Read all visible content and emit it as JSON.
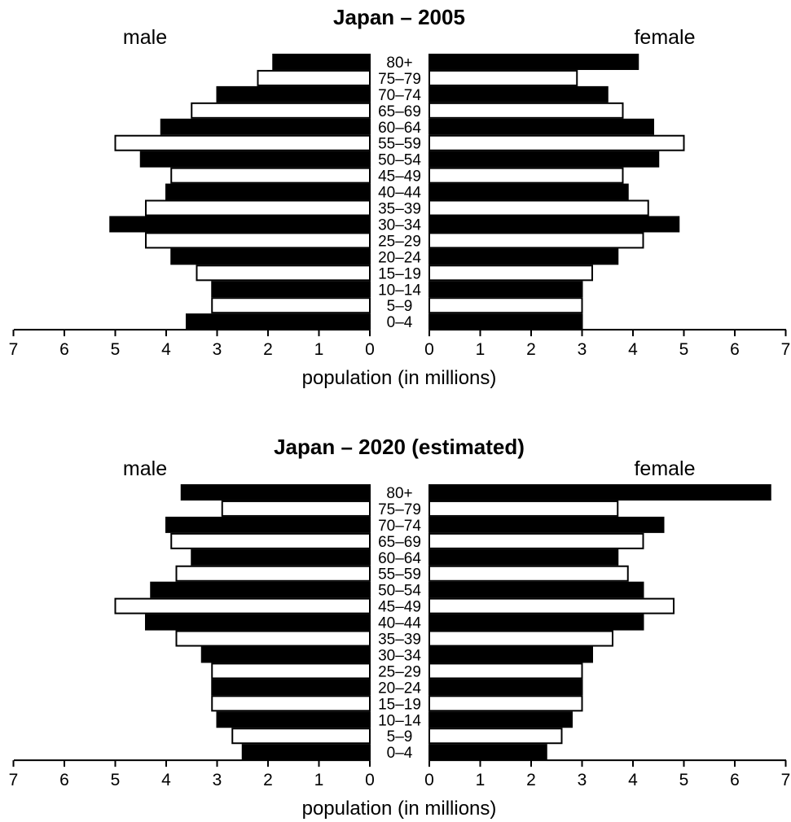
{
  "chart_data": [
    {
      "type": "bar",
      "title": "Japan – 2005",
      "left_label": "male",
      "right_label": "female",
      "xlabel": "population (in millions)",
      "xlim": [
        0,
        7
      ],
      "ticks": [
        "0",
        "1",
        "2",
        "3",
        "4",
        "5",
        "6",
        "7"
      ],
      "categories": [
        "80+",
        "75–79",
        "70–74",
        "65–69",
        "60–64",
        "55–59",
        "50–54",
        "45–49",
        "40–44",
        "35–39",
        "30–34",
        "25–29",
        "20–24",
        "15–19",
        "10–14",
        "5–9",
        "0–4"
      ],
      "series": [
        {
          "name": "male",
          "values": [
            1.9,
            2.2,
            3.0,
            3.5,
            4.1,
            5.0,
            4.5,
            3.9,
            4.0,
            4.4,
            5.1,
            4.4,
            3.9,
            3.4,
            3.1,
            3.1,
            3.6
          ]
        },
        {
          "name": "female",
          "values": [
            4.1,
            2.9,
            3.5,
            3.8,
            4.4,
            5.0,
            4.5,
            3.8,
            3.9,
            4.3,
            4.9,
            4.2,
            3.7,
            3.2,
            3.0,
            3.0,
            3.0
          ]
        }
      ],
      "filled": [
        true,
        false,
        true,
        false,
        true,
        false,
        true,
        false,
        true,
        false,
        true,
        false,
        true,
        false,
        true,
        false,
        true
      ]
    },
    {
      "type": "bar",
      "title": "Japan – 2020 (estimated)",
      "left_label": "male",
      "right_label": "female",
      "xlabel": "population (in millions)",
      "xlim": [
        0,
        7
      ],
      "ticks": [
        "0",
        "1",
        "2",
        "3",
        "4",
        "5",
        "6",
        "7"
      ],
      "categories": [
        "80+",
        "75–79",
        "70–74",
        "65–69",
        "60–64",
        "55–59",
        "50–54",
        "45–49",
        "40–44",
        "35–39",
        "30–34",
        "25–29",
        "20–24",
        "15–19",
        "10–14",
        "5–9",
        "0–4"
      ],
      "series": [
        {
          "name": "male",
          "values": [
            3.7,
            2.9,
            4.0,
            3.9,
            3.5,
            3.8,
            4.3,
            5.0,
            4.4,
            3.8,
            3.3,
            3.1,
            3.1,
            3.1,
            3.0,
            2.7,
            2.5
          ]
        },
        {
          "name": "female",
          "values": [
            6.7,
            3.7,
            4.6,
            4.2,
            3.7,
            3.9,
            4.2,
            4.8,
            4.2,
            3.6,
            3.2,
            3.0,
            3.0,
            3.0,
            2.8,
            2.6,
            2.3
          ]
        }
      ],
      "filled": [
        true,
        false,
        true,
        false,
        true,
        false,
        true,
        false,
        true,
        false,
        true,
        false,
        true,
        false,
        true,
        false,
        true
      ]
    }
  ]
}
